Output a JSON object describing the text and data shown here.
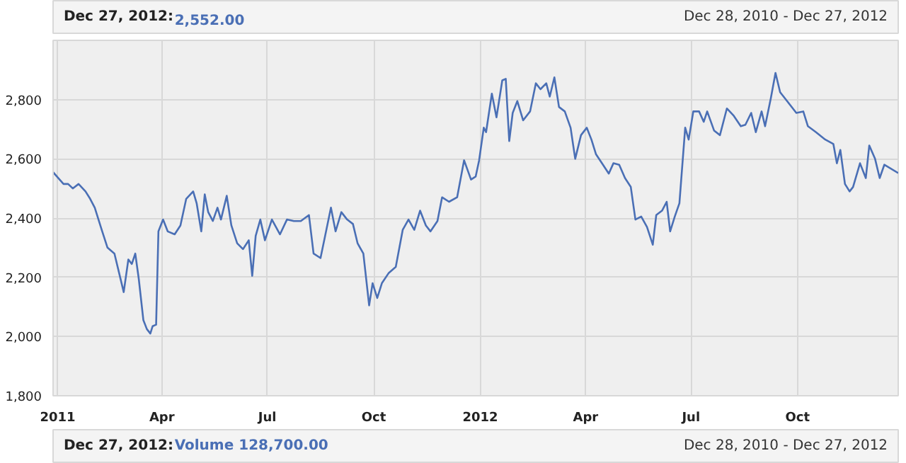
{
  "chart_data": {
    "type": "line",
    "title": "Dec 27, 2012:",
    "annotations": [
      "2,552.00",
      "Dec 28, 2010 - Dec 27, 2012",
      "Dec 27, 2012:",
      "Volume 128,700.00",
      "Dec 28, 2010 - Dec 27, 2012"
    ],
    "x": [
      "2010-12-28",
      "2011-01-06",
      "2011-01-10",
      "2011-01-14",
      "2011-01-19",
      "2011-01-25",
      "2011-01-29",
      "2011-02-02",
      "2011-02-08",
      "2011-02-13",
      "2011-02-19",
      "2011-02-23",
      "2011-02-27",
      "2011-03-03",
      "2011-03-06",
      "2011-03-09",
      "2011-03-12",
      "2011-03-16",
      "2011-03-19",
      "2011-03-22",
      "2011-03-24",
      "2011-03-27",
      "2011-03-29",
      "2011-04-02",
      "2011-04-06",
      "2011-04-12",
      "2011-04-17",
      "2011-04-22",
      "2011-04-28",
      "2011-05-01",
      "2011-05-05",
      "2011-05-08",
      "2011-05-11",
      "2011-05-15",
      "2011-05-19",
      "2011-05-22",
      "2011-05-27",
      "2011-05-31",
      "2011-06-05",
      "2011-06-10",
      "2011-06-15",
      "2011-06-18",
      "2011-06-21",
      "2011-06-25",
      "2011-06-29",
      "2011-07-05",
      "2011-07-12",
      "2011-07-18",
      "2011-07-24",
      "2011-07-30",
      "2011-08-06",
      "2011-08-10",
      "2011-08-16",
      "2011-08-20",
      "2011-08-25",
      "2011-08-29",
      "2011-09-03",
      "2011-09-08",
      "2011-09-13",
      "2011-09-17",
      "2011-09-22",
      "2011-09-27",
      "2011-09-30",
      "2011-10-04",
      "2011-10-08",
      "2011-10-14",
      "2011-10-20",
      "2011-10-26",
      "2011-10-31",
      "2011-11-05",
      "2011-11-10",
      "2011-11-15",
      "2011-11-19",
      "2011-11-25",
      "2011-11-29",
      "2011-12-05",
      "2011-12-12",
      "2011-12-18",
      "2011-12-24",
      "2011-12-28",
      "2011-12-31",
      "2012-01-04",
      "2012-01-06",
      "2012-01-11",
      "2012-01-15",
      "2012-01-20",
      "2012-01-23",
      "2012-01-26",
      "2012-01-29",
      "2012-02-02",
      "2012-02-07",
      "2012-02-13",
      "2012-02-18",
      "2012-02-22",
      "2012-02-27",
      "2012-03-01",
      "2012-03-05",
      "2012-03-09",
      "2012-03-14",
      "2012-03-19",
      "2012-03-23",
      "2012-03-28",
      "2012-04-02",
      "2012-04-06",
      "2012-04-10",
      "2012-04-16",
      "2012-04-21",
      "2012-04-25",
      "2012-04-30",
      "2012-05-05",
      "2012-05-10",
      "2012-05-14",
      "2012-05-19",
      "2012-05-24",
      "2012-05-29",
      "2012-06-01",
      "2012-06-06",
      "2012-06-10",
      "2012-06-13",
      "2012-06-17",
      "2012-06-21",
      "2012-06-26",
      "2012-06-29",
      "2012-07-03",
      "2012-07-08",
      "2012-07-12",
      "2012-07-15",
      "2012-07-21",
      "2012-07-26",
      "2012-08-01",
      "2012-08-07",
      "2012-08-13",
      "2012-08-17",
      "2012-08-22",
      "2012-08-26",
      "2012-08-31",
      "2012-09-03",
      "2012-09-08",
      "2012-09-12",
      "2012-09-16",
      "2012-09-22",
      "2012-09-30",
      "2012-10-06",
      "2012-10-10",
      "2012-10-17",
      "2012-10-25",
      "2012-11-01",
      "2012-11-04",
      "2012-11-07",
      "2012-11-11",
      "2012-11-15",
      "2012-11-18",
      "2012-11-24",
      "2012-11-29",
      "2012-12-02",
      "2012-12-07",
      "2012-12-11",
      "2012-12-15",
      "2012-12-27"
    ],
    "series": [
      {
        "color": "#4a6fb5",
        "values": [
          2555,
          2515,
          2515,
          2500,
          2515,
          2490,
          2465,
          2435,
          2360,
          2300,
          2280,
          2215,
          2150,
          2260,
          2245,
          2280,
          2195,
          2055,
          2025,
          2010,
          2035,
          2040,
          2355,
          2395,
          2355,
          2345,
          2375,
          2465,
          2490,
          2450,
          2355,
          2480,
          2420,
          2390,
          2435,
          2395,
          2475,
          2375,
          2315,
          2295,
          2325,
          2205,
          2340,
          2395,
          2325,
          2395,
          2345,
          2395,
          2390,
          2390,
          2410,
          2280,
          2265,
          2340,
          2435,
          2355,
          2420,
          2395,
          2380,
          2315,
          2280,
          2105,
          2180,
          2130,
          2180,
          2215,
          2235,
          2360,
          2395,
          2360,
          2425,
          2375,
          2355,
          2390,
          2470,
          2455,
          2470,
          2595,
          2530,
          2540,
          2595,
          2705,
          2690,
          2820,
          2740,
          2865,
          2870,
          2660,
          2755,
          2795,
          2730,
          2760,
          2855,
          2835,
          2855,
          2810,
          2875,
          2775,
          2760,
          2705,
          2600,
          2680,
          2705,
          2665,
          2615,
          2580,
          2550,
          2585,
          2580,
          2535,
          2505,
          2395,
          2405,
          2370,
          2310,
          2410,
          2425,
          2455,
          2355,
          2405,
          2450,
          2705,
          2665,
          2760,
          2760,
          2725,
          2760,
          2695,
          2680,
          2770,
          2745,
          2710,
          2715,
          2755,
          2690,
          2760,
          2710,
          2805,
          2890,
          2825,
          2795,
          2755,
          2760,
          2710,
          2690,
          2665,
          2650,
          2585,
          2630,
          2515,
          2490,
          2505,
          2585,
          2535,
          2645,
          2600,
          2535,
          2580,
          2552
        ]
      }
    ],
    "xlim": [
      "2010-12-28",
      "2012-12-27"
    ],
    "xticks": [
      {
        "value": "2011-01-01",
        "label": "2011"
      },
      {
        "value": "2011-04-01",
        "label": "Apr"
      },
      {
        "value": "2011-07-01",
        "label": "Jul"
      },
      {
        "value": "2011-10-01",
        "label": "Oct"
      },
      {
        "value": "2012-01-01",
        "label": "2012"
      },
      {
        "value": "2012-04-01",
        "label": "Apr"
      },
      {
        "value": "2012-07-01",
        "label": "Jul"
      },
      {
        "value": "2012-10-01",
        "label": "Oct"
      }
    ],
    "ylim": [
      1800,
      3000
    ],
    "yticks": [
      {
        "value": 1800,
        "label": "1,800"
      },
      {
        "value": 2000,
        "label": "2,000"
      },
      {
        "value": 2200,
        "label": "2,200"
      },
      {
        "value": 2400,
        "label": "2,400"
      },
      {
        "value": 2600,
        "label": "2,600"
      },
      {
        "value": 2800,
        "label": "2,800"
      }
    ],
    "grid": true
  }
}
